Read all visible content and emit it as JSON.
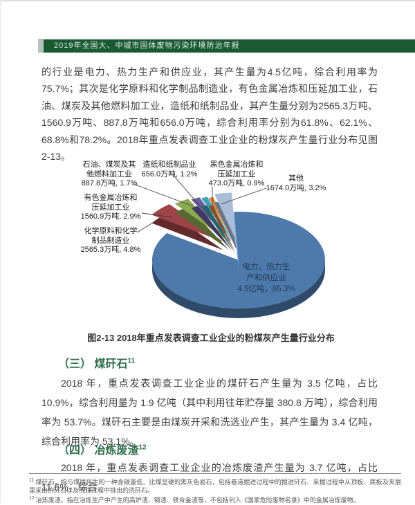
{
  "header": {
    "title": "2019年全国大、中城市固体废物污染环境防治年报"
  },
  "paragraphs": {
    "p1": "的行业是电力、热力生产和供应业，其产生量为4.5亿吨，综合利用率为75.7%；其次是化学原料和化学制品制造业，有色金属冶炼和压延加工业，石油、煤炭及其他燃料加工业，造纸和纸制品业，其产生量分别为2565.3万吨、1560.9万吨、887.8万吨和656.0万吨，综合利用率分别为61.8%、62.1%、68.8%和78.2%。2018年重点发表调查工业企业的粉煤灰产生量行业分布见图2-13。"
  },
  "sections": [
    {
      "heading": "（三） 煤矸石",
      "sup": "11",
      "body": "2018 年，重点发表调查工业企业的煤矸石产生量为 3.5 亿吨，占比 10.9%，综合利用量为 1.9 亿吨（其中利用往年贮存量 380.8 万吨），综合利用率为 53.7%。煤矸石主要是由煤炭开采和洗选业产生，其产生量为 3.4 亿吨，综合利用率为 53.1%。"
    },
    {
      "heading": "（四） 冶炼废渣",
      "sup": "12",
      "body": "2018 年，重点发表调查工业企业的冶炼废渣产生量为 3.7 亿吨，占比 11.6%，综合"
    }
  ],
  "footnotes": [
    {
      "num": "11",
      "text": "煤矸石，指与煤层伴生的一种含碳量低、比煤坚硬的黑灰色岩石，包括巷道掘进过程中的掘进矸石、采掘过程中从顶板、底板及夹层里采出的矸石以及洗煤过程中挑出的洗矸石。"
    },
    {
      "num": "12",
      "text": "冶炼废渣，指在冶炼生产中产生的高炉渣、钢渣、铁合金渣等，不包括列入《国家危险废物名录》中的金属冶炼废物。"
    }
  ],
  "chart_data": {
    "type": "pie",
    "style": "3d-exploded",
    "title": "图2-13 2018年重点发表调查工业企业的粉煤灰产生量行业分布",
    "legend_position": "none",
    "labels_style": "direct labels with leader lines",
    "slices": [
      {
        "label": "化学原料和化学制品制造业",
        "value_label": "2565.3万吨, 4.8%",
        "value_wan_t": 2565.3,
        "pct": 4.8,
        "color": "#9e4449"
      },
      {
        "label": "有色金属冶炼和压延加工业",
        "value_label": "1560.9万吨, 2.9%",
        "value_wan_t": 1560.9,
        "pct": 2.9,
        "color": "#8caa4f"
      },
      {
        "label": "石油、煤炭及其他燃料加工业",
        "value_label": "887.8万吨, 1.7%",
        "value_wan_t": 887.8,
        "pct": 1.7,
        "color": "#695d9b"
      },
      {
        "label": "造纸和纸制品业",
        "value_label": "656.0万吨, 1.2%",
        "value_wan_t": 656.0,
        "pct": 1.2,
        "color": "#41a0b5"
      },
      {
        "label": "黑色金属冶炼和压延加工业",
        "value_label": "473.0万吨, 0.9%",
        "value_wan_t": 473.0,
        "pct": 0.9,
        "color": "#d28540"
      },
      {
        "label": "其他",
        "value_label": "1674.0万吨, 3.2%",
        "value_wan_t": 1674.0,
        "pct": 3.2,
        "color": "#a9bdd9"
      },
      {
        "label": "电力、热力生产和供应业",
        "value_label": "4.5亿吨，85.3%",
        "value_wan_t": 45000,
        "pct": 85.3,
        "color": "#4d79ab"
      }
    ],
    "colors": {
      "header_green": "#1a5a33",
      "heading_green": "#2d6e4a",
      "leader_line": "#3f3f3f"
    }
  }
}
